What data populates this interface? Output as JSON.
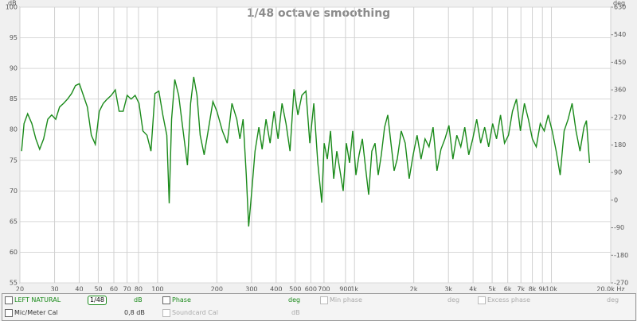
{
  "chart_data": {
    "type": "line",
    "title": "1/48 octave smoothing",
    "ylabel": "dB",
    "y2label": "deg",
    "xscale": "log",
    "grid": true,
    "xlim": [
      20,
      20000
    ],
    "xticks": [
      20,
      30,
      40,
      50,
      60,
      70,
      80,
      100,
      200,
      300,
      400,
      500,
      600,
      700,
      900,
      {
        "value": 1000,
        "label": "1k"
      },
      {
        "value": 2000,
        "label": "2k"
      },
      {
        "value": 3000,
        "label": "3k"
      },
      {
        "value": 4000,
        "label": "4k"
      },
      {
        "value": 5000,
        "label": "5k"
      },
      {
        "value": 6000,
        "label": "6k"
      },
      {
        "value": 7000,
        "label": "7k"
      },
      {
        "value": 8000,
        "label": "8k"
      },
      {
        "value": 9000,
        "label": "9k"
      },
      {
        "value": 10000,
        "label": "10k"
      },
      {
        "value": 20000,
        "label": "20.0k Hz"
      }
    ],
    "ylim": [
      55,
      100
    ],
    "yticks": [
      55,
      60,
      65,
      70,
      75,
      80,
      85,
      90,
      95,
      100
    ],
    "y2lim": [
      -270,
      630
    ],
    "y2ticks": [
      -270,
      -180,
      -90,
      0,
      90,
      180,
      270,
      360,
      450,
      540,
      630
    ],
    "x": [
      20.4,
      21.0,
      21.9,
      23.0,
      24.1,
      25.2,
      26.4,
      27.7,
      29.0,
      30.4,
      31.8,
      33.3,
      34.9,
      36.6,
      38.3,
      40.1,
      42.0,
      44.0,
      46.1,
      48.3,
      50.6,
      53.0,
      55.5,
      58.2,
      61.0,
      63.8,
      66.9,
      70.1,
      73.4,
      76.9,
      80.5,
      84.3,
      88.4,
      92.6,
      97.0,
      101.5,
      106.4,
      111.4,
      114.6,
      117.8,
      122.3,
      128,
      134.1,
      141.8,
      147.2,
      152.7,
      158.6,
      164.6,
      172.4,
      180.7,
      191.0,
      200.2,
      213.5,
      225.8,
      238.7,
      252.5,
      261.8,
      271.8,
      282.1,
      290.2,
      300.9,
      312.5,
      327,
      339.5,
      355.6,
      372.6,
      390.4,
      409,
      428.5,
      449,
      470.3,
      492.8,
      516,
      540.6,
      566.4,
      593.3,
      621.6,
      651,
      682,
      701.3,
      727.8,
      755.8,
      784.5,
      813.4,
      844.2,
      876,
      909.7,
      944.2,
      979.5,
      1017,
      1055,
      1096,
      1137,
      1180,
      1225,
      1271,
      1319,
      1369,
      1421,
      1476,
      1531,
      1589,
      1648,
      1727,
      1809,
      1895,
      1986,
      2079,
      2178,
      2282,
      2391,
      2505,
      2622,
      2747,
      2878,
      3015,
      3159,
      3308,
      3466,
      3631,
      3804,
      3986,
      4173,
      4372,
      4580,
      4799,
      5028,
      5263,
      5514,
      5777,
      6053,
      6342,
      6640,
      6957,
      7288,
      7636,
      8001,
      8376,
      8776,
      9194,
      9633,
      10092,
      10566,
      11070,
      11598,
      12151,
      12731,
      13330,
      13966,
      14632,
      15050,
      15610
    ],
    "series": [
      {
        "name": "LEFT NATURAL",
        "color": "#1a8a1a",
        "values": [
          76.5,
          81,
          82.6,
          81,
          78.5,
          76.8,
          78.5,
          81.7,
          82.4,
          81.7,
          83.7,
          84.3,
          85,
          85.9,
          87.2,
          87.5,
          85.6,
          83.7,
          79.1,
          77.6,
          83,
          84.3,
          85,
          85.6,
          86.5,
          83,
          83,
          85.6,
          85,
          85.6,
          84.3,
          79.8,
          79.1,
          76.5,
          85.9,
          86.3,
          82.4,
          79.1,
          68,
          81.7,
          88.2,
          85.6,
          80.4,
          74.2,
          84.3,
          88.6,
          85.6,
          79.1,
          75.9,
          79.8,
          84.6,
          83,
          79.8,
          77.8,
          84.3,
          81.7,
          78.5,
          81.7,
          72.6,
          64.2,
          70,
          76.5,
          80.4,
          76.8,
          81.7,
          77.8,
          83,
          78.5,
          84.3,
          81,
          76.5,
          86.6,
          82.4,
          85.6,
          86.3,
          77.8,
          84.3,
          74.6,
          68.1,
          77.8,
          75.2,
          79.8,
          72,
          76.5,
          73.3,
          70,
          77.8,
          74.6,
          79.8,
          72.6,
          75.9,
          78.5,
          73.9,
          69.4,
          76.5,
          77.8,
          72.6,
          75.9,
          80.4,
          82.4,
          77.8,
          73.3,
          75.2,
          79.8,
          77.8,
          72,
          75.9,
          79.1,
          75.2,
          78.5,
          77.2,
          80.4,
          73.3,
          76.8,
          78.5,
          80.7,
          75.2,
          79.1,
          77.2,
          80.4,
          75.9,
          78.5,
          81.7,
          77.8,
          80.4,
          77.2,
          81,
          78.5,
          82.4,
          77.8,
          79.1,
          83,
          85,
          79.8,
          84.3,
          81.7,
          78.5,
          77.2,
          81,
          79.8,
          82.4,
          79.8,
          76.5,
          72.6,
          79.8,
          81.7,
          84.3,
          79.8,
          76.5,
          80.4,
          81.5,
          74.6
        ]
      }
    ]
  },
  "controls": {
    "row1": [
      "LEFT NATURAL",
      "1/48",
      "dB",
      "Phase",
      "deg",
      "Min phase",
      "deg",
      "Excess phase",
      "deg"
    ],
    "row2": [
      "Mic/Meter Cal",
      "0,8 dB",
      "Soundcard Cal",
      "dB"
    ]
  }
}
